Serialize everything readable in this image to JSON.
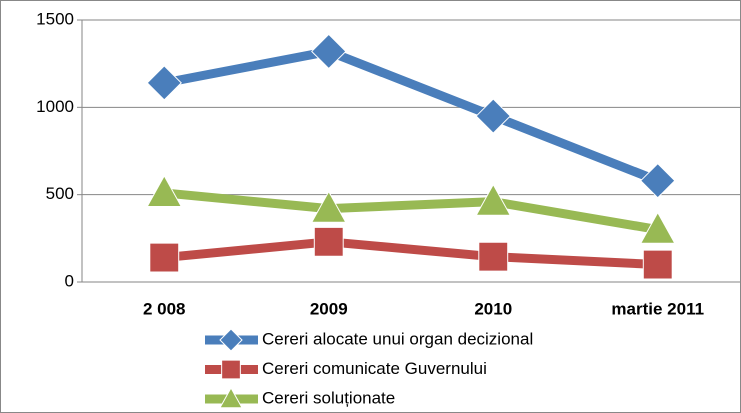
{
  "chart_data": {
    "type": "line",
    "categories": [
      "2 008",
      "2009",
      "2010",
      "martie 2011"
    ],
    "series": [
      {
        "name": "Cereri alocate unui organ decizional",
        "color": "#4a7ebb",
        "marker": "diamond",
        "values": [
          1140,
          1320,
          950,
          580
        ]
      },
      {
        "name": "Cereri comunicate Guvernului",
        "color": "#be4b48",
        "marker": "square",
        "values": [
          140,
          230,
          145,
          100
        ]
      },
      {
        "name": "Cereri soluționate",
        "color": "#98b954",
        "marker": "triangle",
        "values": [
          510,
          420,
          460,
          300
        ]
      }
    ],
    "ylim": [
      0,
      1500
    ],
    "yticks": [
      0,
      500,
      1000,
      1500
    ],
    "grid": true,
    "legend": "bottom"
  }
}
